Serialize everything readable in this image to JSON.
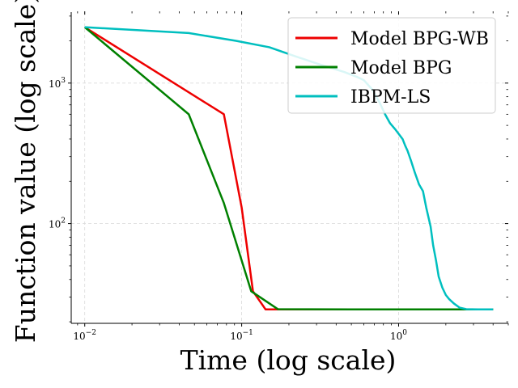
{
  "chart_data": {
    "type": "line",
    "title": "",
    "xlabel": "Time (log scale)",
    "ylabel": "Function value (log scale)",
    "xscale": "log",
    "yscale": "log",
    "xlim": [
      0.0082,
      5.0
    ],
    "ylim": [
      19.5,
      3200
    ],
    "grid": true,
    "legend_position": "top-right",
    "x_tick_labels": [
      {
        "value": 0.01,
        "base": "10",
        "exp": "−2"
      },
      {
        "value": 0.1,
        "base": "10",
        "exp": "−1"
      },
      {
        "value": 1,
        "base": "10",
        "exp": "0"
      }
    ],
    "y_tick_labels": [
      {
        "value": 100,
        "base": "10",
        "exp": "2"
      },
      {
        "value": 1000,
        "base": "10",
        "exp": "3"
      }
    ],
    "series": [
      {
        "name": "Model BPG-WB",
        "color": "#ee0000",
        "points": [
          [
            0.01,
            2500
          ],
          [
            0.077,
            600
          ],
          [
            0.1,
            130
          ],
          [
            0.118,
            33
          ],
          [
            0.142,
            24.5
          ],
          [
            0.17,
            24.5
          ],
          [
            0.5,
            24.5
          ],
          [
            2.0,
            24.5
          ],
          [
            4.0,
            24.5
          ]
        ]
      },
      {
        "name": "Model BPG",
        "color": "#008000",
        "points": [
          [
            0.01,
            2500
          ],
          [
            0.046,
            600
          ],
          [
            0.077,
            140
          ],
          [
            0.115,
            33
          ],
          [
            0.17,
            24.6
          ],
          [
            0.5,
            24.5
          ],
          [
            2.0,
            24.5
          ],
          [
            4.0,
            24.5
          ]
        ]
      },
      {
        "name": "IBPM-LS",
        "color": "#00bfbf",
        "points": [
          [
            0.01,
            2500
          ],
          [
            0.046,
            2270
          ],
          [
            0.092,
            2000
          ],
          [
            0.15,
            1800
          ],
          [
            0.22,
            1550
          ],
          [
            0.32,
            1350
          ],
          [
            0.45,
            1200
          ],
          [
            0.55,
            1100
          ],
          [
            0.6,
            1050
          ],
          [
            0.68,
            900
          ],
          [
            0.76,
            720
          ],
          [
            0.82,
            600
          ],
          [
            0.88,
            520
          ],
          [
            0.95,
            470
          ],
          [
            1.06,
            400
          ],
          [
            1.1,
            360
          ],
          [
            1.14,
            330
          ],
          [
            1.2,
            280
          ],
          [
            1.27,
            230
          ],
          [
            1.35,
            190
          ],
          [
            1.43,
            170
          ],
          [
            1.5,
            130
          ],
          [
            1.6,
            95
          ],
          [
            1.66,
            70
          ],
          [
            1.73,
            55
          ],
          [
            1.8,
            42
          ],
          [
            1.9,
            35
          ],
          [
            2.0,
            31
          ],
          [
            2.1,
            29
          ],
          [
            2.25,
            27
          ],
          [
            2.45,
            25.2
          ],
          [
            2.7,
            24.6
          ],
          [
            3.2,
            24.5
          ],
          [
            4.0,
            24.5
          ]
        ]
      }
    ]
  }
}
